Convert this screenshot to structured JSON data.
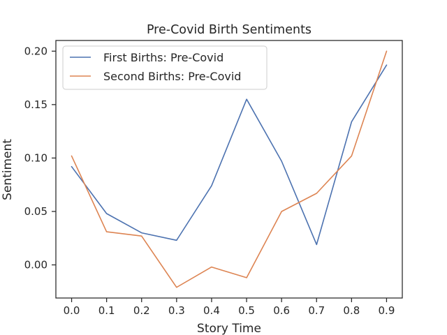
{
  "chart_data": {
    "type": "line",
    "title": "Pre-Covid Birth Sentiments",
    "xlabel": "Story Time",
    "ylabel": "Sentiment",
    "x": [
      0.0,
      0.1,
      0.2,
      0.3,
      0.4,
      0.5,
      0.6,
      0.7,
      0.8,
      0.9
    ],
    "xticks": [
      "0.0",
      "0.1",
      "0.2",
      "0.3",
      "0.4",
      "0.5",
      "0.6",
      "0.7",
      "0.8",
      "0.9"
    ],
    "yticks": [
      0.0,
      0.05,
      0.1,
      0.15,
      0.2
    ],
    "ytick_labels": [
      "0.00",
      "0.05",
      "0.10",
      "0.15",
      "0.20"
    ],
    "xlim": [
      -0.045,
      0.945
    ],
    "ylim": [
      -0.031,
      0.21
    ],
    "grid": false,
    "legend_position": "upper-left",
    "series": [
      {
        "name": "First Births: Pre-Covid",
        "color": "#4c72b0",
        "values": [
          0.092,
          0.048,
          0.03,
          0.023,
          0.074,
          0.155,
          0.097,
          0.019,
          0.134,
          0.187
        ]
      },
      {
        "name": "Second Births: Pre-Covid",
        "color": "#dd8452",
        "values": [
          0.102,
          0.031,
          0.027,
          -0.021,
          -0.002,
          -0.012,
          0.05,
          0.067,
          0.102,
          0.2
        ]
      }
    ]
  }
}
